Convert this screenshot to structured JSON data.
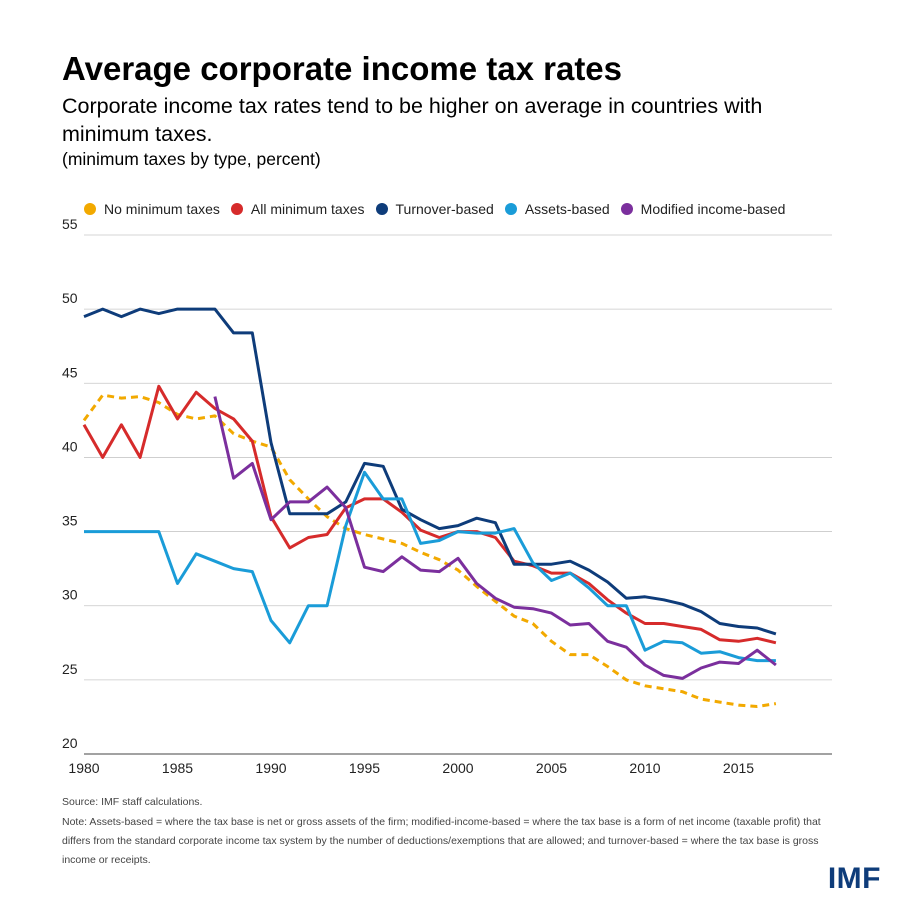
{
  "title": "Average corporate income tax rates",
  "subtitle": "Corporate income tax rates tend to be higher on average in countries with minimum taxes.",
  "unit_note": "(minimum taxes by type, percent)",
  "source": "Source: IMF staff calculations.",
  "note": "Note: Assets-based = where the tax base is net or gross assets of the firm; modified-income-based = where the tax base is a form of net income (taxable profit) that differs from the standard corporate income tax system by the number of deductions/exemptions that are allowed; and turnover-based = where the tax base is gross income or receipts.",
  "logo": "IMF",
  "chart_data": {
    "type": "line",
    "title": "Average corporate income tax rates",
    "xlabel": "",
    "ylabel": "",
    "xlim": [
      1980,
      2020
    ],
    "ylim": [
      20,
      55
    ],
    "x_ticks": [
      1980,
      1985,
      1990,
      1995,
      2000,
      2005,
      2010,
      2015
    ],
    "y_ticks": [
      20,
      25,
      30,
      35,
      40,
      45,
      50,
      55
    ],
    "grid": true,
    "legend_position": "top",
    "series": [
      {
        "name": "No minimum taxes",
        "color": "#f2a900",
        "dashed": true,
        "x": [
          1980,
          1981,
          1982,
          1983,
          1984,
          1985,
          1986,
          1987,
          1988,
          1989,
          1990,
          1991,
          1992,
          1993,
          1994,
          1995,
          1996,
          1997,
          1998,
          1999,
          2000,
          2001,
          2002,
          2003,
          2004,
          2005,
          2006,
          2007,
          2008,
          2009,
          2010,
          2011,
          2012,
          2013,
          2014,
          2015,
          2016,
          2017
        ],
        "values": [
          42.5,
          44.2,
          44.0,
          44.1,
          43.7,
          42.9,
          42.6,
          42.8,
          41.6,
          41.1,
          40.7,
          38.5,
          37.2,
          36.0,
          35.2,
          34.8,
          34.5,
          34.2,
          33.6,
          33.1,
          32.4,
          31.3,
          30.3,
          29.3,
          28.8,
          27.6,
          26.7,
          26.7,
          25.9,
          25.0,
          24.6,
          24.4,
          24.2,
          23.7,
          23.5,
          23.3,
          23.2,
          23.4
        ]
      },
      {
        "name": "All minimum taxes",
        "color": "#d62b2b",
        "dashed": false,
        "x": [
          1980,
          1981,
          1982,
          1983,
          1984,
          1985,
          1986,
          1987,
          1988,
          1989,
          1990,
          1991,
          1992,
          1993,
          1994,
          1995,
          1996,
          1997,
          1998,
          1999,
          2000,
          2001,
          2002,
          2003,
          2004,
          2005,
          2006,
          2007,
          2008,
          2009,
          2010,
          2011,
          2012,
          2013,
          2014,
          2015,
          2016,
          2017
        ],
        "values": [
          42.2,
          40.0,
          42.2,
          40.0,
          44.8,
          42.6,
          44.4,
          43.3,
          42.6,
          41.1,
          36.0,
          33.9,
          34.6,
          34.8,
          36.6,
          37.2,
          37.2,
          36.3,
          35.1,
          34.6,
          35.0,
          35.0,
          34.6,
          33.0,
          32.7,
          32.2,
          32.2,
          31.5,
          30.4,
          29.5,
          28.8,
          28.8,
          28.6,
          28.4,
          27.7,
          27.6,
          27.8,
          27.5
        ]
      },
      {
        "name": "Turnover-based",
        "color": "#0e3c7a",
        "dashed": false,
        "x": [
          1980,
          1981,
          1982,
          1983,
          1984,
          1985,
          1986,
          1987,
          1988,
          1989,
          1990,
          1991,
          1992,
          1993,
          1994,
          1995,
          1996,
          1997,
          1998,
          1999,
          2000,
          2001,
          2002,
          2003,
          2004,
          2005,
          2006,
          2007,
          2008,
          2009,
          2010,
          2011,
          2012,
          2013,
          2014,
          2015,
          2016,
          2017
        ],
        "values": [
          49.5,
          50.0,
          49.5,
          50.0,
          49.7,
          50.0,
          50.0,
          50.0,
          48.4,
          48.4,
          41.0,
          36.2,
          36.2,
          36.2,
          37.0,
          39.6,
          39.4,
          36.5,
          35.8,
          35.2,
          35.4,
          35.9,
          35.6,
          32.8,
          32.8,
          32.8,
          33.0,
          32.4,
          31.6,
          30.5,
          30.6,
          30.4,
          30.1,
          29.6,
          28.8,
          28.6,
          28.5,
          28.1
        ]
      },
      {
        "name": "Assets-based",
        "color": "#1a9cd8",
        "dashed": false,
        "x": [
          1980,
          1981,
          1982,
          1983,
          1984,
          1985,
          1986,
          1987,
          1988,
          1989,
          1990,
          1991,
          1992,
          1993,
          1994,
          1995,
          1996,
          1997,
          1998,
          1999,
          2000,
          2001,
          2002,
          2003,
          2004,
          2005,
          2006,
          2007,
          2008,
          2009,
          2010,
          2011,
          2012,
          2013,
          2014,
          2015,
          2016,
          2017
        ],
        "values": [
          35.0,
          35.0,
          35.0,
          35.0,
          35.0,
          31.5,
          33.5,
          33.0,
          32.5,
          32.3,
          29.0,
          27.5,
          30.0,
          30.0,
          35.4,
          39.0,
          37.2,
          37.2,
          34.2,
          34.4,
          35.0,
          34.9,
          34.9,
          35.2,
          32.9,
          31.7,
          32.2,
          31.2,
          30.0,
          30.0,
          27.0,
          27.6,
          27.5,
          26.8,
          26.9,
          26.5,
          26.3,
          26.3
        ]
      },
      {
        "name": "Modified income-based",
        "color": "#7b2f9d",
        "dashed": false,
        "x": [
          1987,
          1988,
          1989,
          1990,
          1991,
          1992,
          1993,
          1994,
          1995,
          1996,
          1997,
          1998,
          1999,
          2000,
          2001,
          2002,
          2003,
          2004,
          2005,
          2006,
          2007,
          2008,
          2009,
          2010,
          2011,
          2012,
          2013,
          2014,
          2015,
          2016,
          2017
        ],
        "values": [
          44.1,
          38.6,
          39.6,
          35.8,
          37.0,
          37.0,
          38.0,
          36.6,
          32.6,
          32.3,
          33.3,
          32.4,
          32.3,
          33.2,
          31.5,
          30.5,
          29.9,
          29.8,
          29.5,
          28.7,
          28.8,
          27.6,
          27.2,
          26.0,
          25.3,
          25.1,
          25.8,
          26.2,
          26.1,
          27.0,
          26.0
        ]
      }
    ]
  }
}
